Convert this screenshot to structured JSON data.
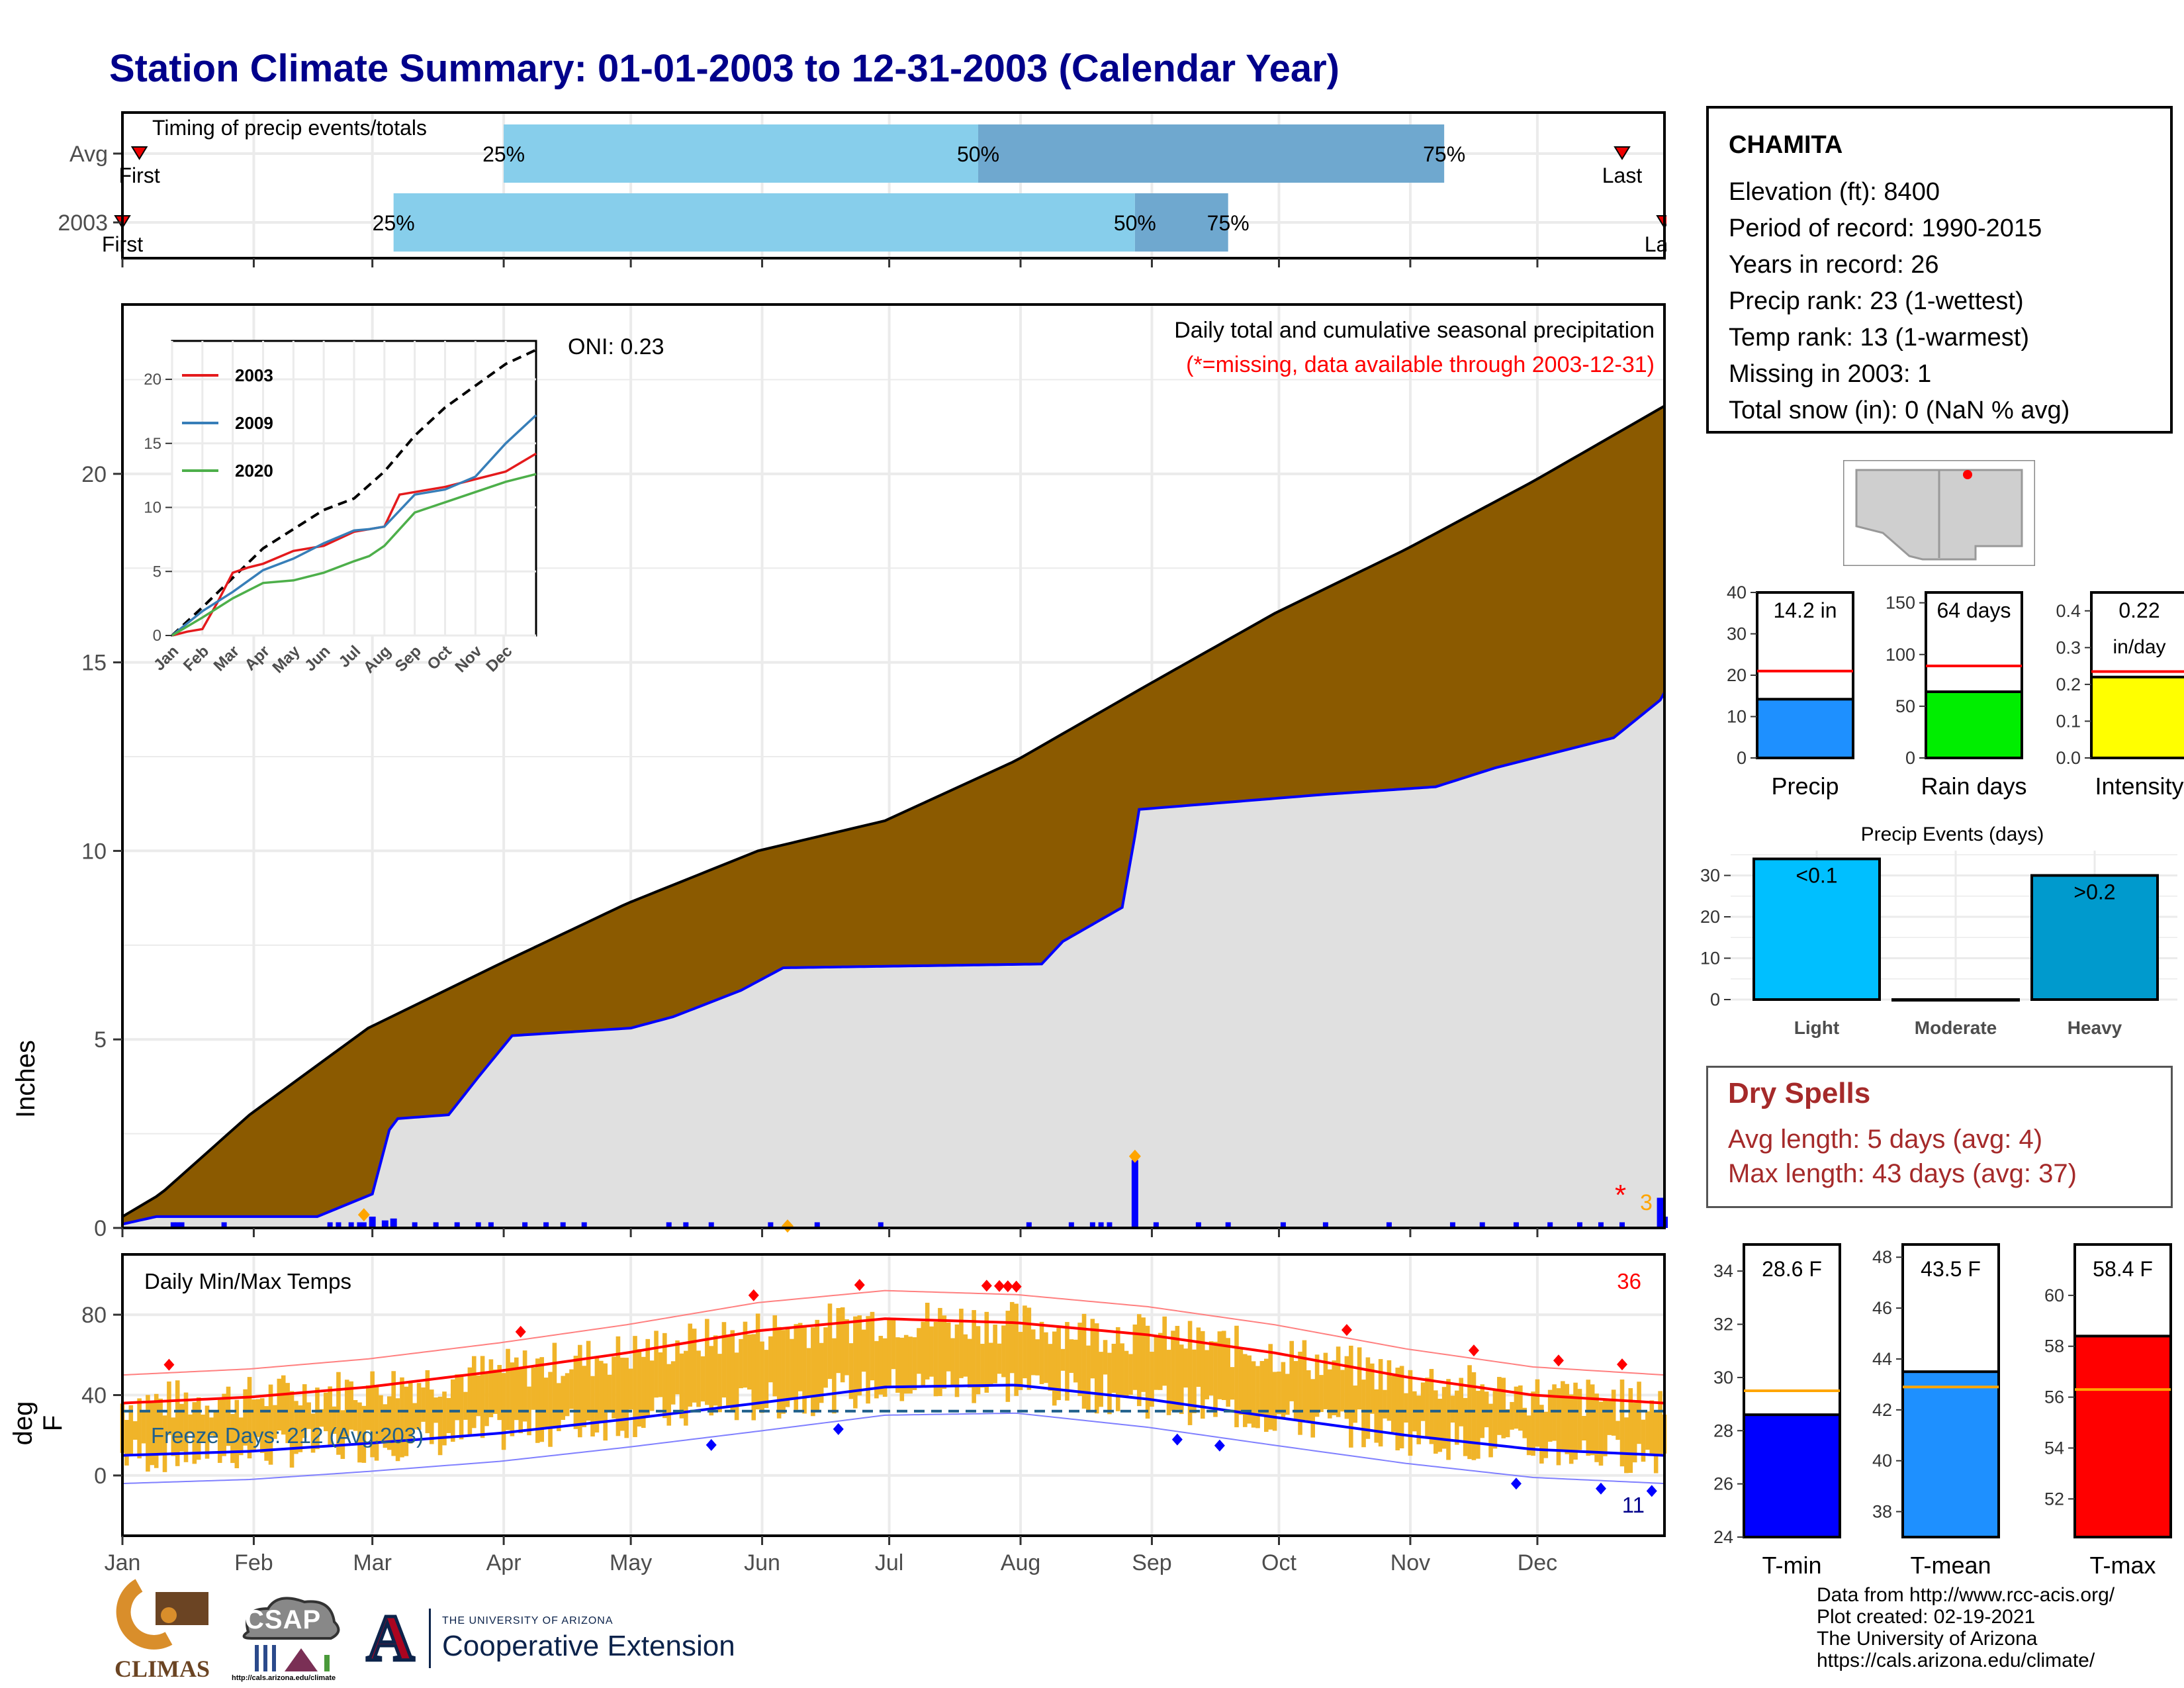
{
  "title": "Station Climate Summary: 01-01-2003 to 12-31-2003 (Calendar Year)",
  "timing": {
    "label": "Timing of precip events/totals",
    "rows": [
      {
        "name": "Avg",
        "first_label": "First",
        "last_label": "Last",
        "q25": "25%",
        "q50": "50%",
        "q75": "75%",
        "q25_day": 91,
        "q50_day": 203,
        "q75_day": 313,
        "first_day": 5,
        "last_day": 355
      },
      {
        "name": "2003",
        "first_label": "First",
        "last_label": "Last",
        "q25": "25%",
        "q50": "50%",
        "q75": "75%",
        "q25_day": 65,
        "q50_day": 240,
        "q75_day": 262,
        "first_day": 1,
        "last_day": 365
      }
    ]
  },
  "main": {
    "ylabel": "Inches",
    "ylim": [
      0,
      24
    ],
    "yticks": [
      "0",
      "5",
      "10",
      "15",
      "20"
    ],
    "header": "Daily total and cumulative seasonal precipitation",
    "missing_note": "(*=missing, data available through 2003-12-31)",
    "oni": "ONI: 0.23",
    "missing_marker": "*",
    "missing_count": "3",
    "months": [
      "Jan",
      "Feb",
      "Mar",
      "Apr",
      "May",
      "Jun",
      "Jul",
      "Aug",
      "Sep",
      "Oct",
      "Nov",
      "Dec"
    ]
  },
  "inset": {
    "yticks": [
      "0",
      "5",
      "10",
      "15",
      "20"
    ],
    "months": [
      "Jan",
      "Feb",
      "Mar",
      "Apr",
      "May",
      "Jun",
      "Jul",
      "Aug",
      "Sep",
      "Oct",
      "Nov",
      "Dec"
    ],
    "legend": [
      {
        "name": "2003",
        "color": "#e41a1c"
      },
      {
        "name": "2009",
        "color": "#377eb8"
      },
      {
        "name": "2020",
        "color": "#4daf4a"
      }
    ]
  },
  "temps": {
    "ylabel": "deg F",
    "label": "Daily Min/Max Temps",
    "count_hot": "36",
    "count_cold": "11",
    "freeze_label": "Freeze Days: 212 (Avg:203)",
    "yticks": [
      "0",
      "40",
      "80"
    ]
  },
  "station": {
    "name": "CHAMITA",
    "lines": [
      "Elevation (ft): 8400",
      "Period of record: 1990-2015",
      "Years in record: 26",
      "Precip rank: 23 (1-wettest)",
      "Temp rank: 13 (1-warmest)",
      "Missing in 2003: 1",
      "Total snow (in): 0 (NaN % avg)"
    ]
  },
  "mini_bars": [
    {
      "label": "Precip",
      "value_label": "14.2 in",
      "value": 14.2,
      "avg": 21,
      "ymax": 40,
      "yticks": [
        "0",
        "10",
        "20",
        "30",
        "40"
      ],
      "color": "#1e90ff"
    },
    {
      "label": "Rain days",
      "value_label": "64 days",
      "value": 64,
      "avg": 89,
      "ymax": 160,
      "yticks": [
        "0",
        "50",
        "100",
        "150"
      ],
      "color": "#00ee00"
    },
    {
      "label": "Intensity",
      "value_label": "0.22",
      "value_label2": "in/day",
      "value": 0.22,
      "avg": 0.235,
      "ymax": 0.45,
      "yticks": [
        "0.0",
        "0.1",
        "0.2",
        "0.3",
        "0.4"
      ],
      "color": "#ffff00"
    }
  ],
  "events": {
    "title": "Precip Events (days)",
    "yticks": [
      "0",
      "10",
      "20",
      "30"
    ],
    "bars": [
      {
        "label": "Light",
        "value_label": "<0.1",
        "value": 34,
        "color": "#00bfff"
      },
      {
        "label": "Moderate",
        "value_label": "",
        "value": 0,
        "color": "#1e90ff"
      },
      {
        "label": "Heavy",
        "value_label": ">0.2",
        "value": 30,
        "color": "#009acd"
      }
    ]
  },
  "dry_spells": {
    "title": "Dry Spells",
    "line1": "Avg length: 5 days (avg: 4)",
    "line2": "Max length: 43 days (avg: 37)",
    "color": "#a52a2a"
  },
  "temp_bars": [
    {
      "label": "T-min",
      "value_label": "28.6 F",
      "value": 28.6,
      "avg": 29.5,
      "ymin": 24,
      "ymax": 35,
      "yticks": [
        "24",
        "26",
        "28",
        "30",
        "32",
        "34"
      ],
      "color": "#0000ff"
    },
    {
      "label": "T-mean",
      "value_label": "43.5 F",
      "value": 43.5,
      "avg": 42.9,
      "ymin": 37,
      "ymax": 48.5,
      "yticks": [
        "38",
        "40",
        "42",
        "44",
        "46",
        "48"
      ],
      "color": "#1e90ff"
    },
    {
      "label": "T-max",
      "value_label": "58.4 F",
      "value": 58.4,
      "avg": 56.3,
      "ymin": 50.5,
      "ymax": 62,
      "yticks": [
        "52",
        "54",
        "56",
        "58",
        "60"
      ],
      "color": "#ff0000"
    }
  ],
  "footer": {
    "lines": [
      "Data from http://www.rcc-acis.org/",
      "Plot created: 02-19-2021",
      "The University of Arizona",
      "https://cals.arizona.edu/climate/"
    ],
    "logo_climas": "CLIMAS",
    "logo_csap": "CSAP",
    "logo_csap_url": "http://cals.arizona.edu/climate",
    "ua_small": "THE UNIVERSITY OF ARIZONA",
    "ua_big": "Cooperative Extension",
    "ua_letter": "A"
  },
  "chart_data": [
    {
      "type": "area",
      "title": "Daily total and cumulative seasonal precipitation",
      "ylabel": "Inches",
      "ylim": [
        0,
        24
      ],
      "series": [
        {
          "name": "avg cumulative",
          "x_day": [
            1,
            10,
            31,
            59,
            90,
            120,
            151,
            181,
            212,
            243,
            273,
            304,
            334,
            365
          ],
          "values": [
            0.3,
            0.9,
            3.0,
            5.3,
            7.0,
            8.6,
            10.0,
            10.8,
            12.4,
            14.4,
            16.3,
            18.0,
            19.8,
            21.8
          ]
        },
        {
          "name": "2003 cumulative",
          "x_day": [
            1,
            9,
            47,
            60,
            64,
            66,
            78,
            85,
            93,
            121,
            131,
            147,
            157,
            218,
            223,
            237,
            240,
            241,
            285,
            311,
            325,
            353,
            364,
            365
          ],
          "values": [
            0.1,
            0.3,
            0.3,
            0.9,
            2.6,
            2.9,
            3.0,
            4.0,
            5.1,
            5.3,
            5.6,
            6.3,
            6.9,
            7.0,
            7.6,
            8.5,
            10.4,
            11.1,
            11.5,
            11.7,
            12.2,
            13.0,
            14.0,
            14.2
          ]
        },
        {
          "name": "daily",
          "x_day": [
            60,
            63,
            65,
            240,
            364,
            365
          ],
          "values": [
            0.3,
            0.2,
            0.25,
            1.8,
            0.8,
            0.3
          ]
        }
      ]
    },
    {
      "type": "line",
      "title": "inset cumulative",
      "ylim": [
        0,
        23
      ],
      "series": [
        {
          "name": "avg",
          "x_month": [
            0,
            1,
            2,
            3,
            4,
            5,
            6,
            7,
            8,
            9,
            10,
            11,
            12
          ],
          "values": [
            0,
            2.2,
            4.5,
            6.8,
            8.3,
            9.8,
            10.7,
            12.8,
            15.6,
            17.8,
            19.5,
            21.2,
            22.3
          ]
        },
        {
          "name": "2003",
          "x_month": [
            0,
            0.5,
            1.0,
            1.5,
            2.0,
            2.5,
            3.0,
            4.0,
            5.0,
            6.0,
            7.0,
            7.5,
            8.0,
            9.0,
            10.0,
            11.0,
            12.0
          ],
          "values": [
            0,
            0.3,
            0.5,
            2.6,
            4.9,
            5.3,
            5.6,
            6.6,
            7.0,
            8.1,
            8.5,
            11.0,
            11.2,
            11.6,
            12.2,
            12.8,
            14.2
          ]
        },
        {
          "name": "2009",
          "x_month": [
            0,
            1,
            2,
            3,
            4,
            5,
            6,
            6.5,
            7,
            8,
            9,
            10,
            11,
            12
          ],
          "values": [
            0,
            1.9,
            3.4,
            5.1,
            6.0,
            7.2,
            8.2,
            8.3,
            8.5,
            11.0,
            11.4,
            12.4,
            15.0,
            17.2
          ]
        },
        {
          "name": "2020",
          "x_month": [
            0,
            1,
            2,
            3,
            4,
            5,
            6,
            6.5,
            7,
            8,
            9,
            10,
            11,
            12
          ],
          "values": [
            0,
            1.4,
            2.9,
            4.1,
            4.3,
            4.9,
            5.8,
            6.2,
            7.0,
            9.6,
            10.4,
            11.2,
            12.0,
            12.6
          ]
        }
      ]
    },
    {
      "type": "line",
      "title": "Daily Min/Max Temps",
      "ylabel": "deg F",
      "ylim": [
        -30,
        110
      ],
      "series": [
        {
          "name": "avg max",
          "x_day": [
            1,
            31,
            59,
            90,
            120,
            151,
            181,
            212,
            243,
            273,
            304,
            334,
            365
          ],
          "values": [
            36,
            39,
            44,
            52,
            61,
            72,
            78,
            76,
            70,
            61,
            49,
            40,
            36
          ]
        },
        {
          "name": "avg min",
          "x_day": [
            1,
            31,
            59,
            90,
            120,
            151,
            181,
            212,
            243,
            273,
            304,
            334,
            365
          ],
          "values": [
            10,
            12,
            16,
            21,
            28,
            36,
            44,
            45,
            38,
            29,
            20,
            13,
            10
          ]
        },
        {
          "name": "freeze line",
          "x_day": [
            1,
            365
          ],
          "values": [
            32,
            32
          ]
        }
      ]
    },
    {
      "type": "bar",
      "title": "Precip Events (days)",
      "categories": [
        "Light",
        "Moderate",
        "Heavy"
      ],
      "values": [
        34,
        0,
        30
      ]
    },
    {
      "type": "bar",
      "categories": [
        "Precip",
        "Rain days",
        "Intensity"
      ],
      "values": [
        14.2,
        64,
        0.22
      ]
    },
    {
      "type": "bar",
      "categories": [
        "T-min",
        "T-mean",
        "T-max"
      ],
      "values": [
        28.6,
        43.5,
        58.4
      ]
    }
  ]
}
